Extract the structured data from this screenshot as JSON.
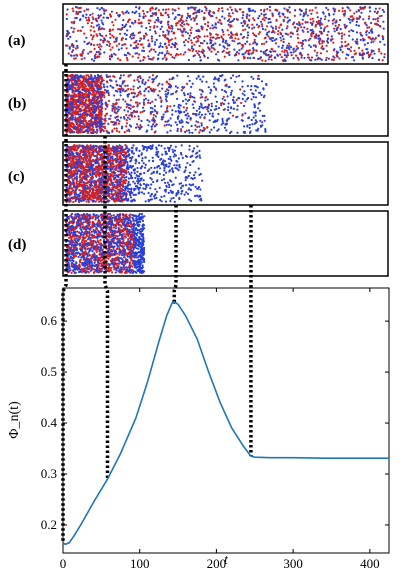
{
  "panels": [
    {
      "label": "(a)",
      "front": 360,
      "cluster_front": 0,
      "spread_to": 360
    },
    {
      "label": "(b)",
      "front": 360,
      "cluster_front": 48,
      "spread_to": 265
    },
    {
      "label": "(c)",
      "front": 360,
      "cluster_front": 80,
      "spread_to": 180
    },
    {
      "label": "(d)",
      "front": 360,
      "cluster_front": 90,
      "spread_to": 90
    }
  ],
  "colors": {
    "red": "#d62020",
    "blue": "#2a3fd6",
    "line": "#1f77b4",
    "dotted": "#000000"
  },
  "chart_data": {
    "type": "line",
    "xlabel": "t",
    "ylabel": "Φ_n(t)",
    "xlim": [
      0,
      425
    ],
    "ylim": [
      0.145,
      0.665
    ],
    "xticks": [
      "0",
      "100",
      "200",
      "300",
      "400"
    ],
    "yticks": [
      "0.2",
      "0.3",
      "0.4",
      "0.5",
      "0.6"
    ],
    "series": [
      {
        "x": [
          0,
          3,
          8,
          15,
          25,
          40,
          58,
          75,
          95,
          110,
          125,
          135,
          142,
          145,
          150,
          160,
          175,
          190,
          205,
          220,
          235,
          245,
          250,
          270,
          300,
          340,
          380,
          425
        ],
        "y": [
          0.165,
          0.162,
          0.165,
          0.18,
          0.205,
          0.245,
          0.29,
          0.34,
          0.41,
          0.48,
          0.56,
          0.61,
          0.635,
          0.638,
          0.633,
          0.61,
          0.565,
          0.5,
          0.44,
          0.39,
          0.355,
          0.335,
          0.333,
          0.332,
          0.332,
          0.331,
          0.331,
          0.331
        ]
      }
    ],
    "dotted_connectors_t": [
      0,
      58,
      145,
      245
    ]
  }
}
